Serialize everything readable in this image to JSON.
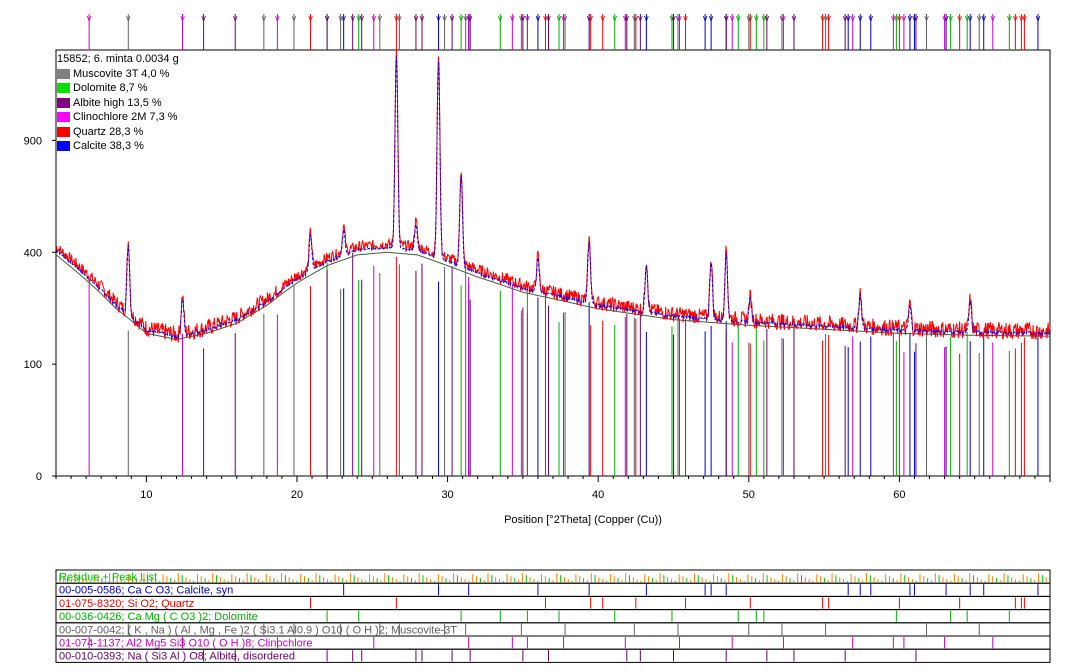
{
  "chart_data": {
    "type": "line",
    "sample_title": "15852; 6. minta 0.0034 g",
    "xlabel": "Position [°2Theta] (Copper (Cu))",
    "ylabel": "",
    "xlim": [
      4,
      70
    ],
    "y_scale": "sqrt",
    "ylim": [
      0,
      1450
    ],
    "x_ticks": [
      10,
      20,
      30,
      40,
      50,
      60
    ],
    "y_ticks": [
      0,
      100,
      400,
      900
    ],
    "grid": false,
    "legend_position": "top-left",
    "legend": [
      {
        "name": "Muscovite 3T 4,0 %",
        "color": "#808080"
      },
      {
        "name": "Dolomite 8,7 %",
        "color": "#00e000"
      },
      {
        "name": "Albite high 13,5 %",
        "color": "#800080"
      },
      {
        "name": "Clinochlore 2M 7,3 %",
        "color": "#ff00ff"
      },
      {
        "name": "Quartz 28,3 %",
        "color": "#ff0000"
      },
      {
        "name": "Calcite 38,3 %",
        "color": "#0000ff"
      }
    ],
    "background_trend": {
      "x": [
        4,
        6,
        8,
        10,
        12,
        14,
        16,
        18,
        20,
        22,
        24,
        26,
        28,
        30,
        32,
        35,
        40,
        45,
        50,
        55,
        60,
        65,
        70
      ],
      "y": [
        420,
        330,
        240,
        175,
        160,
        175,
        200,
        250,
        320,
        380,
        420,
        430,
        420,
        380,
        340,
        290,
        240,
        210,
        195,
        185,
        175,
        170,
        168
      ]
    },
    "peaks": [
      {
        "x": 8.8,
        "y": 440,
        "phase": "Muscovite"
      },
      {
        "x": 12.4,
        "y": 260,
        "phase": "Clinochlore"
      },
      {
        "x": 20.9,
        "y": 480,
        "phase": "Quartz"
      },
      {
        "x": 23.1,
        "y": 500,
        "phase": "Calcite"
      },
      {
        "x": 26.6,
        "y": 1450,
        "phase": "Quartz"
      },
      {
        "x": 27.9,
        "y": 520,
        "phase": "Albite"
      },
      {
        "x": 29.4,
        "y": 1420,
        "phase": "Calcite"
      },
      {
        "x": 30.9,
        "y": 750,
        "phase": "Dolomite"
      },
      {
        "x": 36.0,
        "y": 390,
        "phase": "Calcite"
      },
      {
        "x": 39.4,
        "y": 450,
        "phase": "Calcite"
      },
      {
        "x": 43.2,
        "y": 370,
        "phase": "Calcite"
      },
      {
        "x": 47.5,
        "y": 380,
        "phase": "Calcite"
      },
      {
        "x": 48.5,
        "y": 410,
        "phase": "Calcite"
      },
      {
        "x": 50.1,
        "y": 260,
        "phase": "Quartz"
      },
      {
        "x": 57.4,
        "y": 270,
        "phase": "Calcite"
      },
      {
        "x": 60.7,
        "y": 240,
        "phase": "Calcite"
      },
      {
        "x": 64.7,
        "y": 250,
        "phase": "Calcite"
      }
    ],
    "reference_patterns": [
      {
        "label": "Residue + Peak List",
        "color": "#00c000",
        "secondary_color": "#ff8000"
      },
      {
        "label": "00-005-0586; Ca C O3; Calcite, syn",
        "color": "#0000cc",
        "lines": [
          23.1,
          29.4,
          31.4,
          36.0,
          39.4,
          43.2,
          47.1,
          47.5,
          48.5,
          56.6,
          57.4,
          58.1,
          60.7,
          61.0,
          63.1,
          64.7,
          65.6,
          69.2
        ]
      },
      {
        "label": "01-075-8320; Si O2; Quartz",
        "color": "#ff0000",
        "lines": [
          20.9,
          26.6,
          36.5,
          39.5,
          40.3,
          42.5,
          45.8,
          50.1,
          54.9,
          55.3,
          60.0,
          64.0,
          67.7,
          68.1,
          68.3
        ]
      },
      {
        "label": "00-036-0426; Ca Mg ( C O3 )2; Dolomite",
        "color": "#00b000",
        "lines": [
          22.0,
          24.1,
          30.9,
          33.5,
          35.3,
          37.4,
          41.1,
          44.9,
          49.3,
          50.5,
          51.0,
          59.8,
          63.4,
          64.5,
          67.3
        ]
      },
      {
        "label": "00-007-0042; ( K , Na ) ( Al , Mg , Fe )2 ( Si3.1 Al0.9 ) O10 ( O H )2; Muscovite-3T",
        "color": "#606060",
        "lines": [
          8.8,
          17.8,
          19.8,
          22.9,
          25.5,
          26.8,
          29.8,
          31.2,
          34.9,
          37.8,
          42.4,
          45.3,
          50.0,
          52.2,
          55.1,
          61.8,
          65.3
        ]
      },
      {
        "label": "01-074-1137; Al2 Mg5 Si3 O10 ( O H )8; Clinochlore",
        "color": "#cc00cc",
        "lines": [
          6.2,
          12.4,
          18.7,
          25.1,
          31.4,
          34.3,
          35.3,
          37.7,
          41.8,
          45.4,
          48.9,
          52.3,
          56.9,
          59.6,
          60.3,
          63.0,
          66.2
        ]
      },
      {
        "label": "00-010-0393; Na ( Si3 Al ) O8; Albite, disordered",
        "color": "#6a006a",
        "lines": [
          13.8,
          15.9,
          22.0,
          23.7,
          24.3,
          27.9,
          28.3,
          30.3,
          31.5,
          35.0,
          36.7,
          41.9,
          42.8,
          45.0,
          48.5,
          51.2,
          53.0,
          56.4,
          61.1
        ]
      }
    ]
  }
}
